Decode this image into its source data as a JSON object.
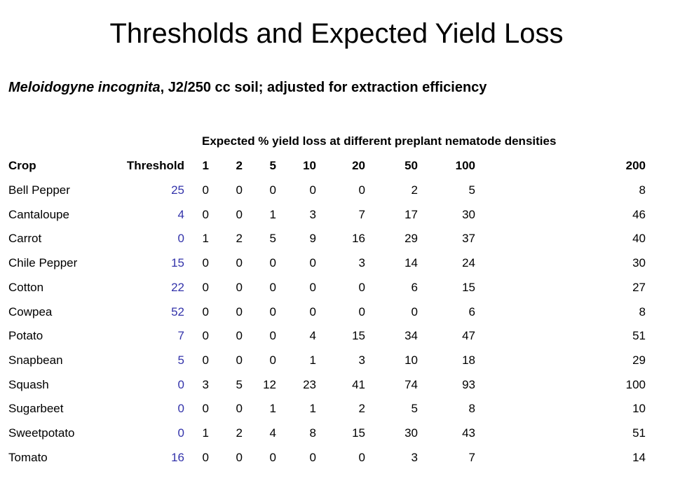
{
  "title": "Thresholds and Expected Yield Loss",
  "subtitle": {
    "species": "Meloidogyne incognita",
    "rest": ", J2/250 cc soil; adjusted for extraction efficiency"
  },
  "table": {
    "group_header": "Expected % yield loss at different preplant nematode densities",
    "columns": [
      "Crop",
      "Threshold",
      "1",
      "2",
      "5",
      "10",
      "20",
      "50",
      "100",
      "200"
    ],
    "threshold_color": "#3333aa",
    "rows": [
      {
        "crop": "Bell Pepper",
        "threshold": "25",
        "values": [
          "0",
          "0",
          "0",
          "0",
          "0",
          "2",
          "5",
          "8"
        ]
      },
      {
        "crop": "Cantaloupe",
        "threshold": "4",
        "values": [
          "0",
          "0",
          "1",
          "3",
          "7",
          "17",
          "30",
          "46"
        ]
      },
      {
        "crop": "Carrot",
        "threshold": "0",
        "values": [
          "1",
          "2",
          "5",
          "9",
          "16",
          "29",
          "37",
          "40"
        ]
      },
      {
        "crop": "Chile Pepper",
        "threshold": "15",
        "values": [
          "0",
          "0",
          "0",
          "0",
          "3",
          "14",
          "24",
          "30"
        ]
      },
      {
        "crop": "Cotton",
        "threshold": "22",
        "values": [
          "0",
          "0",
          "0",
          "0",
          "0",
          "6",
          "15",
          "27"
        ]
      },
      {
        "crop": "Cowpea",
        "threshold": "52",
        "values": [
          "0",
          "0",
          "0",
          "0",
          "0",
          "0",
          "6",
          "8"
        ]
      },
      {
        "crop": "Potato",
        "threshold": "7",
        "values": [
          "0",
          "0",
          "0",
          "4",
          "15",
          "34",
          "47",
          "51"
        ]
      },
      {
        "crop": "Snapbean",
        "threshold": "5",
        "values": [
          "0",
          "0",
          "0",
          "1",
          "3",
          "10",
          "18",
          "29"
        ]
      },
      {
        "crop": "Squash",
        "threshold": "0",
        "values": [
          "3",
          "5",
          "12",
          "23",
          "41",
          "74",
          "93",
          "100"
        ]
      },
      {
        "crop": "Sugarbeet",
        "threshold": "0",
        "values": [
          "0",
          "0",
          "1",
          "1",
          "2",
          "5",
          "8",
          "10"
        ]
      },
      {
        "crop": "Sweetpotato",
        "threshold": "0",
        "values": [
          "1",
          "2",
          "4",
          "8",
          "15",
          "30",
          "43",
          "51"
        ]
      },
      {
        "crop": "Tomato",
        "threshold": "16",
        "values": [
          "0",
          "0",
          "0",
          "0",
          "0",
          "3",
          "7",
          "14"
        ]
      }
    ]
  }
}
